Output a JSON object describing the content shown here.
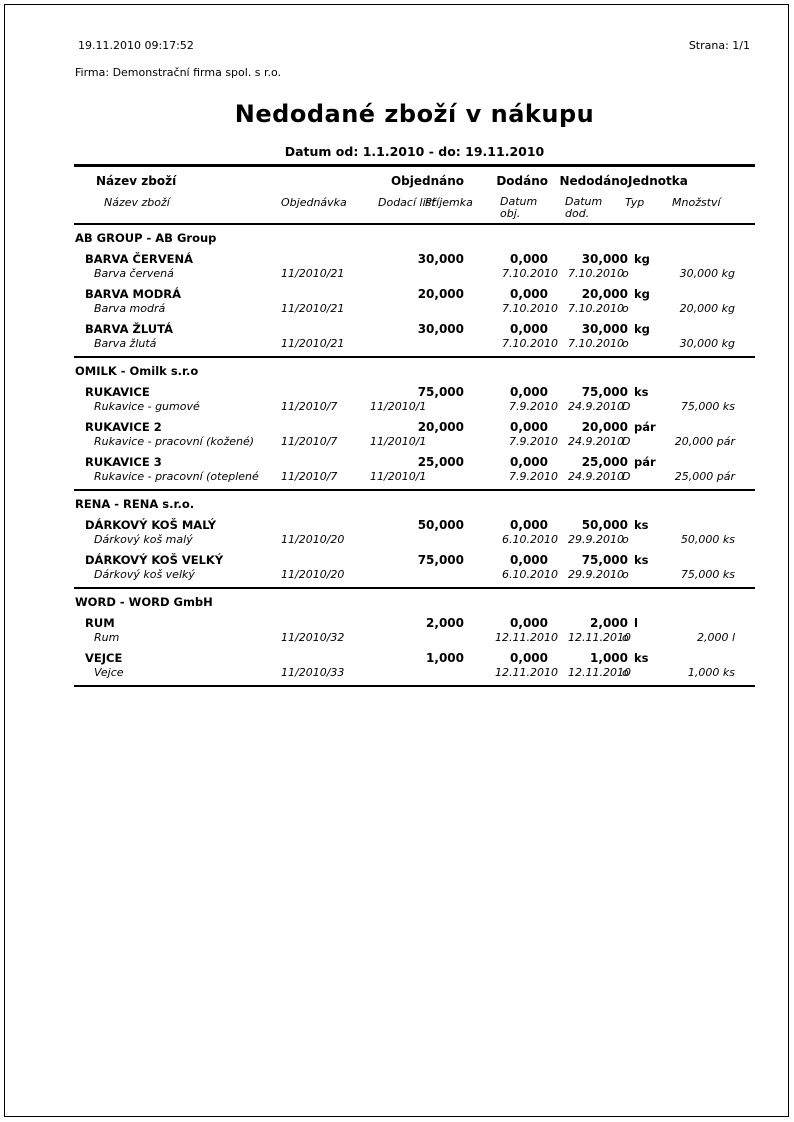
{
  "page": {
    "printed_at": "19.11.2010 09:17:52",
    "page_label": "Strana: 1/1",
    "company_line": "Firma: Demonstrační firma spol. s r.o.",
    "title": "Nedodané zboží v nákupu",
    "subtitle": "Datum od: 1.1.2010 - do: 19.11.2010"
  },
  "table": {
    "header_primary": {
      "name": "Název zboží",
      "ordered": "Objednáno",
      "delivered": "Dodáno",
      "undelivered": "Nedodáno",
      "unit": "Jednotka"
    },
    "header_secondary": {
      "name": "Název zboží",
      "order": "Objednávka",
      "delivery_note": "Dodací list",
      "receipt": "Příjemka",
      "date_ordered_l1": "Datum",
      "date_ordered_l2": "obj.",
      "date_delivered_l1": "Datum",
      "date_delivered_l2": "dod.",
      "type": "Typ",
      "quantity": "Množství"
    },
    "groups": [
      {
        "name": "AB GROUP - AB Group",
        "items": [
          {
            "title": "BARVA ČERVENÁ",
            "ordered": "30,000",
            "delivered": "0,000",
            "undelivered": "30,000",
            "unit": "kg",
            "subtitle": "Barva červená",
            "order": "11/2010/21",
            "delivery_note": "",
            "receipt": "",
            "date_ordered": "7.10.2010",
            "date_delivered": "7.10.2010",
            "type": "o",
            "quantity": "30,000 kg"
          },
          {
            "title": "BARVA MODRÁ",
            "ordered": "20,000",
            "delivered": "0,000",
            "undelivered": "20,000",
            "unit": "kg",
            "subtitle": "Barva modrá",
            "order": "11/2010/21",
            "delivery_note": "",
            "receipt": "",
            "date_ordered": "7.10.2010",
            "date_delivered": "7.10.2010",
            "type": "o",
            "quantity": "20,000 kg"
          },
          {
            "title": "BARVA ŽLUTÁ",
            "ordered": "30,000",
            "delivered": "0,000",
            "undelivered": "30,000",
            "unit": "kg",
            "subtitle": "Barva žlutá",
            "order": "11/2010/21",
            "delivery_note": "",
            "receipt": "",
            "date_ordered": "7.10.2010",
            "date_delivered": "7.10.2010",
            "type": "o",
            "quantity": "30,000 kg"
          }
        ]
      },
      {
        "name": "OMILK - Omilk s.r.o",
        "items": [
          {
            "title": "RUKAVICE",
            "ordered": "75,000",
            "delivered": "0,000",
            "undelivered": "75,000",
            "unit": "ks",
            "subtitle": "Rukavice - gumové",
            "order": "11/2010/7",
            "delivery_note": "11/2010/1",
            "receipt": "",
            "date_ordered": "7.9.2010",
            "date_delivered": "24.9.2010",
            "type": "D",
            "quantity": "75,000 ks"
          },
          {
            "title": "RUKAVICE 2",
            "ordered": "20,000",
            "delivered": "0,000",
            "undelivered": "20,000",
            "unit": "pár",
            "subtitle": "Rukavice - pracovní (kožené)",
            "order": "11/2010/7",
            "delivery_note": "11/2010/1",
            "receipt": "",
            "date_ordered": "7.9.2010",
            "date_delivered": "24.9.2010",
            "type": "D",
            "quantity": "20,000 pár"
          },
          {
            "title": "RUKAVICE 3",
            "ordered": "25,000",
            "delivered": "0,000",
            "undelivered": "25,000",
            "unit": "pár",
            "subtitle": "Rukavice - pracovní (oteplené",
            "order": "11/2010/7",
            "delivery_note": "11/2010/1",
            "receipt": "",
            "date_ordered": "7.9.2010",
            "date_delivered": "24.9.2010",
            "type": "D",
            "quantity": "25,000 pár"
          }
        ]
      },
      {
        "name": "RENA - RENA s.r.o.",
        "items": [
          {
            "title": "DÁRKOVÝ KOŠ MALÝ",
            "ordered": "50,000",
            "delivered": "0,000",
            "undelivered": "50,000",
            "unit": "ks",
            "subtitle": "Dárkový koš malý",
            "order": "11/2010/20",
            "delivery_note": "",
            "receipt": "",
            "date_ordered": "6.10.2010",
            "date_delivered": "29.9.2010",
            "type": "o",
            "quantity": "50,000 ks"
          },
          {
            "title": "DÁRKOVÝ KOŠ VELKÝ",
            "ordered": "75,000",
            "delivered": "0,000",
            "undelivered": "75,000",
            "unit": "ks",
            "subtitle": "Dárkový koš velký",
            "order": "11/2010/20",
            "delivery_note": "",
            "receipt": "",
            "date_ordered": "6.10.2010",
            "date_delivered": "29.9.2010",
            "type": "o",
            "quantity": "75,000 ks"
          }
        ]
      },
      {
        "name": "WORD - WORD GmbH",
        "items": [
          {
            "title": "RUM",
            "ordered": "2,000",
            "delivered": "0,000",
            "undelivered": "2,000",
            "unit": "l",
            "subtitle": "Rum",
            "order": "11/2010/32",
            "delivery_note": "",
            "receipt": "",
            "date_ordered": "12.11.2010",
            "date_delivered": "12.11.2010",
            "type": "o",
            "quantity": "2,000 l"
          },
          {
            "title": "VEJCE",
            "ordered": "1,000",
            "delivered": "0,000",
            "undelivered": "1,000",
            "unit": "ks",
            "subtitle": "Vejce",
            "order": "11/2010/33",
            "delivery_note": "",
            "receipt": "",
            "date_ordered": "12.11.2010",
            "date_delivered": "12.11.2010",
            "type": "o",
            "quantity": "1,000 ks"
          }
        ]
      }
    ]
  }
}
